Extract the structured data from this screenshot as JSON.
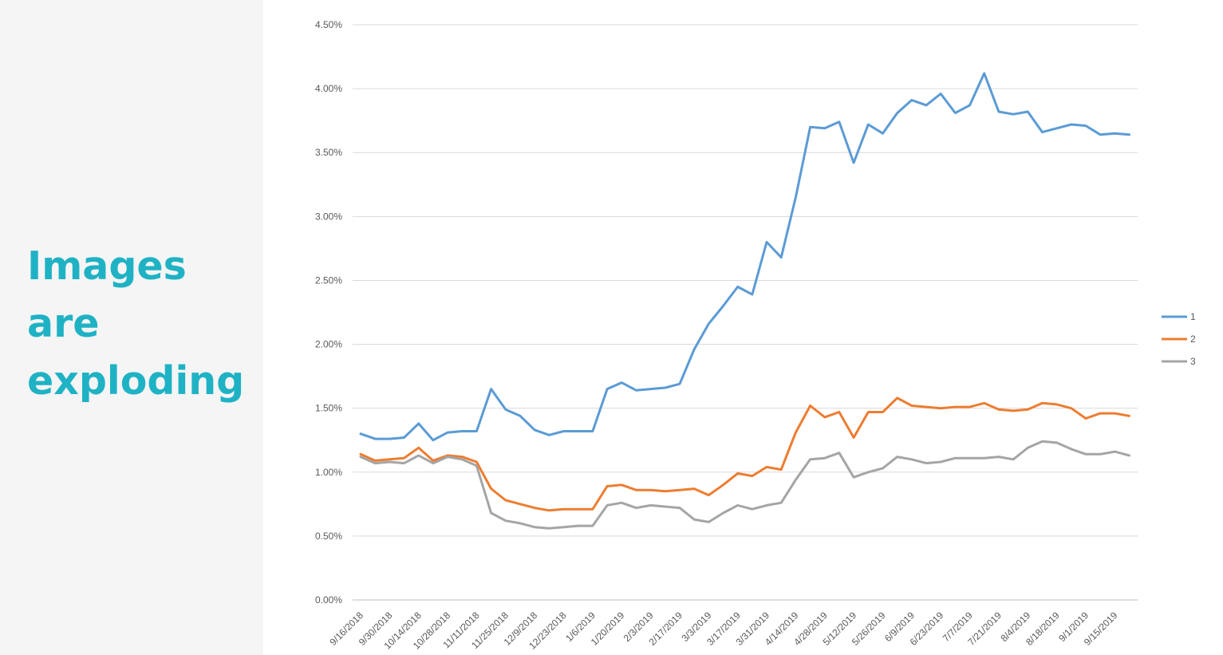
{
  "slide": {
    "headline_lines": [
      "Images",
      "are",
      "exploding"
    ],
    "headline_color": "#1fb2c4",
    "panel_color": "#f5f5f5"
  },
  "chart_data": {
    "type": "line",
    "title": "",
    "xlabel": "",
    "ylabel": "",
    "ylim": [
      0,
      0.045
    ],
    "y_ticks": [
      "0.00%",
      "0.50%",
      "1.00%",
      "1.50%",
      "2.00%",
      "2.50%",
      "3.00%",
      "3.50%",
      "4.00%",
      "4.50%"
    ],
    "grid": "horizontal",
    "legend_position": "right",
    "x_tick_labels": [
      "9/16/2018",
      "9/30/2018",
      "10/14/2018",
      "10/28/2018",
      "11/11/2018",
      "11/25/2018",
      "12/9/2018",
      "12/23/2018",
      "1/6/2019",
      "1/20/2019",
      "2/3/2019",
      "2/17/2019",
      "3/3/2019",
      "3/17/2019",
      "3/31/2019",
      "4/14/2019",
      "4/28/2019",
      "5/12/2019",
      "5/26/2019",
      "6/9/2019",
      "6/23/2019",
      "7/7/2019",
      "7/21/2019",
      "8/4/2019",
      "8/18/2019",
      "9/1/2019",
      "9/15/2019"
    ],
    "x": [
      "9/16/2018",
      "9/23/2018",
      "9/30/2018",
      "10/7/2018",
      "10/14/2018",
      "10/21/2018",
      "10/28/2018",
      "11/4/2018",
      "11/11/2018",
      "11/18/2018",
      "11/25/2018",
      "12/2/2018",
      "12/9/2018",
      "12/16/2018",
      "12/23/2018",
      "12/30/2018",
      "1/6/2019",
      "1/13/2019",
      "1/20/2019",
      "1/27/2019",
      "2/3/2019",
      "2/10/2019",
      "2/17/2019",
      "2/24/2019",
      "3/3/2019",
      "3/10/2019",
      "3/17/2019",
      "3/24/2019",
      "3/31/2019",
      "4/7/2019",
      "4/14/2019",
      "4/21/2019",
      "4/28/2019",
      "5/5/2019",
      "5/12/2019",
      "5/19/2019",
      "5/26/2019",
      "6/2/2019",
      "6/9/2019",
      "6/16/2019",
      "6/23/2019",
      "6/30/2019",
      "7/7/2019",
      "7/14/2019",
      "7/21/2019",
      "7/28/2019",
      "8/4/2019",
      "8/11/2019",
      "8/18/2019",
      "8/25/2019",
      "9/1/2019",
      "9/8/2019",
      "9/15/2019",
      "9/22/2019"
    ],
    "series": [
      {
        "name": "1",
        "color": "#5b9bd5",
        "values": [
          0.013,
          0.0126,
          0.0126,
          0.0127,
          0.0138,
          0.0125,
          0.0131,
          0.0132,
          0.0132,
          0.0165,
          0.0149,
          0.0144,
          0.0133,
          0.0129,
          0.0132,
          0.0132,
          0.0132,
          0.0165,
          0.017,
          0.0164,
          0.0165,
          0.0166,
          0.0169,
          0.0196,
          0.0216,
          0.023,
          0.0245,
          0.0239,
          0.028,
          0.0268,
          0.0315,
          0.037,
          0.0369,
          0.0374,
          0.0342,
          0.0372,
          0.0365,
          0.0381,
          0.0391,
          0.0387,
          0.0396,
          0.0381,
          0.0387,
          0.0412,
          0.0382,
          0.038,
          0.0382,
          0.0366,
          0.0369,
          0.0372,
          0.0371,
          0.0364,
          0.0365,
          0.0364
        ]
      },
      {
        "name": "2",
        "color": "#ed7d31",
        "values": [
          0.0114,
          0.0109,
          0.011,
          0.0111,
          0.0119,
          0.0109,
          0.0113,
          0.0112,
          0.0108,
          0.0087,
          0.0078,
          0.0075,
          0.0072,
          0.007,
          0.0071,
          0.0071,
          0.0071,
          0.0089,
          0.009,
          0.0086,
          0.0086,
          0.0085,
          0.0086,
          0.0087,
          0.0082,
          0.009,
          0.0099,
          0.0097,
          0.0104,
          0.0102,
          0.0131,
          0.0152,
          0.0143,
          0.0147,
          0.0127,
          0.0147,
          0.0147,
          0.0158,
          0.0152,
          0.0151,
          0.015,
          0.0151,
          0.0151,
          0.0154,
          0.0149,
          0.0148,
          0.0149,
          0.0154,
          0.0153,
          0.015,
          0.0142,
          0.0146,
          0.0146,
          0.0144
        ]
      },
      {
        "name": "3",
        "color": "#a5a5a5",
        "values": [
          0.0112,
          0.0107,
          0.0108,
          0.0107,
          0.0113,
          0.0107,
          0.0112,
          0.011,
          0.0105,
          0.0068,
          0.0062,
          0.006,
          0.0057,
          0.0056,
          0.0057,
          0.0058,
          0.0058,
          0.0074,
          0.0076,
          0.0072,
          0.0074,
          0.0073,
          0.0072,
          0.0063,
          0.0061,
          0.0068,
          0.0074,
          0.0071,
          0.0074,
          0.0076,
          0.0094,
          0.011,
          0.0111,
          0.0115,
          0.0096,
          0.01,
          0.0103,
          0.0112,
          0.011,
          0.0107,
          0.0108,
          0.0111,
          0.0111,
          0.0111,
          0.0112,
          0.011,
          0.0119,
          0.0124,
          0.0123,
          0.0118,
          0.0114,
          0.0114,
          0.0116,
          0.0113
        ]
      }
    ]
  }
}
